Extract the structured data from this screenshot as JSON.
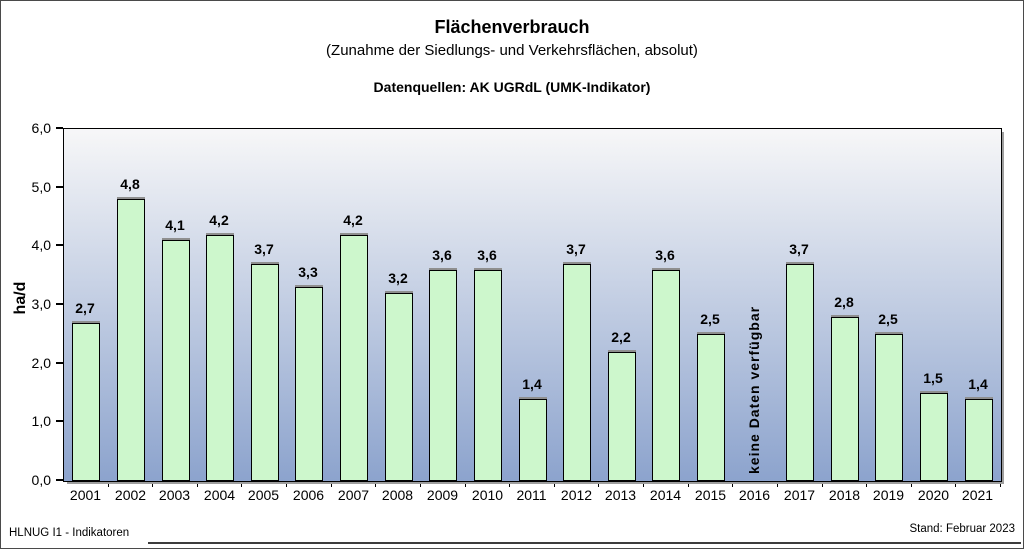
{
  "header": {
    "title": "Flächenverbrauch",
    "subtitle": "(Zunahme der Siedlungs- und Verkehrsflächen, absolut)",
    "source": "Datenquellen: AK UGRdL (UMK-Indikator)"
  },
  "footer": {
    "left": "HLNUG I1 - Indikatoren",
    "right": "Stand: Februar 2023"
  },
  "chart_data": {
    "type": "bar",
    "title": "Flächenverbrauch",
    "subtitle": "(Zunahme der Siedlungs- und Verkehrsflächen, absolut)",
    "source": "Datenquellen: AK UGRdL (UMK-Indikator)",
    "categories": [
      "2001",
      "2002",
      "2003",
      "2004",
      "2005",
      "2006",
      "2007",
      "2008",
      "2009",
      "2010",
      "2011",
      "2012",
      "2013",
      "2014",
      "2015",
      "2016",
      "2017",
      "2018",
      "2019",
      "2020",
      "2021"
    ],
    "values": [
      2.7,
      4.8,
      4.1,
      4.2,
      3.7,
      3.3,
      4.2,
      3.2,
      3.6,
      3.6,
      1.4,
      3.7,
      2.2,
      3.6,
      2.5,
      null,
      3.7,
      2.8,
      2.5,
      1.5,
      1.4
    ],
    "value_labels": [
      "2,7",
      "4,8",
      "4,1",
      "4,2",
      "3,7",
      "3,3",
      "4,2",
      "3,2",
      "3,6",
      "3,6",
      "1,4",
      "3,7",
      "2,2",
      "3,6",
      "2,5",
      null,
      "3,7",
      "2,8",
      "2,5",
      "1,5",
      "1,4"
    ],
    "no_data": {
      "category": "2016",
      "index": 15,
      "label": "keine Daten verfügbar"
    },
    "xlabel": "",
    "ylabel": "ha/d",
    "ylim": [
      0,
      6
    ],
    "ytick_labels": [
      "0,0",
      "1,0",
      "2,0",
      "3,0",
      "4,0",
      "5,0",
      "6,0"
    ],
    "grid": false,
    "legend": "none",
    "colors": {
      "bar_fill": "#cdf7cc",
      "bar_border": "#000000",
      "bar_cap_shadow": "#8f8f8f",
      "plot_gradient_top": "#f7f7f8",
      "plot_gradient_bottom": "#8ca3cd",
      "plot_shadow": "#9e9e9e",
      "text": "#000000"
    }
  }
}
